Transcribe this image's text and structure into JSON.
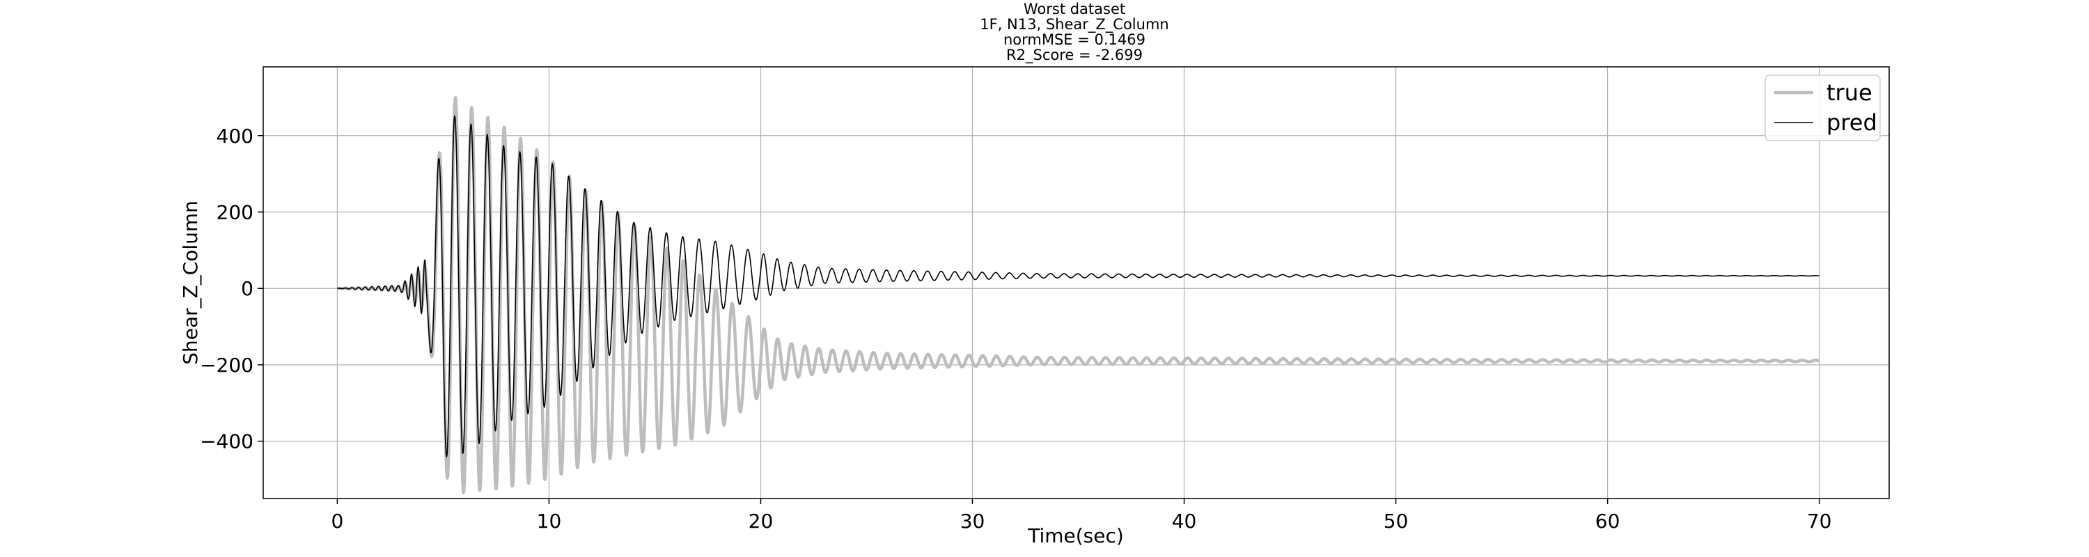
{
  "chart_data": {
    "type": "line",
    "title_lines": [
      "Worst dataset",
      "1F, N13, Shear_Z_Column",
      "normMSE = 0.1469",
      "R2_Score = -2.699"
    ],
    "xlabel": "Time(sec)",
    "ylabel": "Shear_Z_Column",
    "xlim": [
      -3.5,
      73.3
    ],
    "ylim": [
      -550,
      580
    ],
    "xticks": [
      0,
      10,
      20,
      30,
      40,
      50,
      60,
      70
    ],
    "yticks": [
      -400,
      -200,
      0,
      200,
      400
    ],
    "grid": true,
    "legend_position": "top-right",
    "series": [
      {
        "name": "true",
        "color": "#bdbdbd",
        "offset": -190,
        "start_level": 0,
        "oscillation": [
          [
            0.0,
            0
          ],
          [
            3.0,
            6
          ],
          [
            4.2,
            60
          ],
          [
            4.6,
            250
          ],
          [
            5.0,
            460
          ],
          [
            5.5,
            520
          ],
          [
            6.5,
            500
          ],
          [
            8.0,
            470
          ],
          [
            10.0,
            420
          ],
          [
            12.0,
            350
          ],
          [
            14.0,
            300
          ],
          [
            16.0,
            250
          ],
          [
            18.0,
            180
          ],
          [
            20.0,
            90
          ],
          [
            21.0,
            50
          ],
          [
            23.0,
            30
          ],
          [
            26.0,
            20
          ],
          [
            30.0,
            15
          ],
          [
            33.0,
            10
          ],
          [
            40.0,
            8
          ],
          [
            50.0,
            5
          ],
          [
            60.0,
            3
          ],
          [
            70.0,
            2
          ]
        ]
      },
      {
        "name": "pred",
        "color": "#000000",
        "offset": 33,
        "start_level": 0,
        "oscillation": [
          [
            0.0,
            0
          ],
          [
            3.0,
            8
          ],
          [
            4.2,
            80
          ],
          [
            4.6,
            250
          ],
          [
            5.0,
            440
          ],
          [
            5.5,
            450
          ],
          [
            6.5,
            420
          ],
          [
            8.0,
            360
          ],
          [
            10.0,
            320
          ],
          [
            12.0,
            230
          ],
          [
            14.0,
            150
          ],
          [
            16.0,
            110
          ],
          [
            18.0,
            90
          ],
          [
            20.0,
            60
          ],
          [
            21.0,
            40
          ],
          [
            23.0,
            20
          ],
          [
            26.0,
            15
          ],
          [
            30.0,
            10
          ],
          [
            33.0,
            6
          ],
          [
            40.0,
            4
          ],
          [
            50.0,
            2
          ],
          [
            60.0,
            1
          ],
          [
            70.0,
            0.5
          ]
        ]
      }
    ]
  }
}
